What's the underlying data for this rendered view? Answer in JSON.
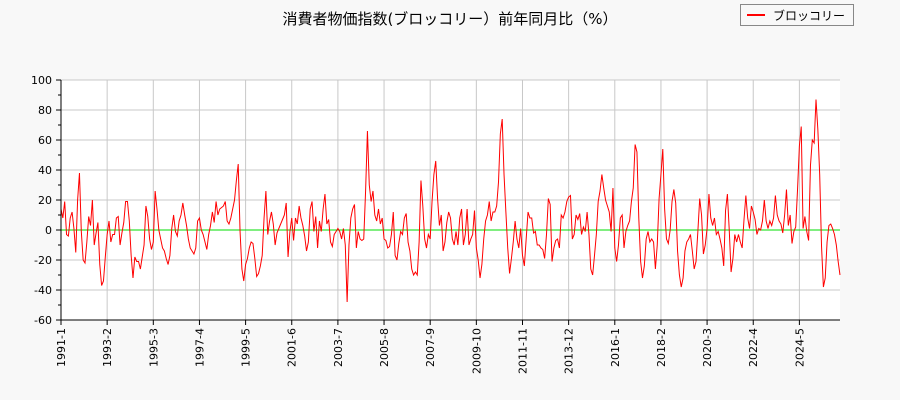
{
  "chart_data": {
    "type": "line",
    "title": "消費者物価指数(ブロッコリー）前年同月比（%）",
    "xlabel": "",
    "ylabel": "",
    "ylim": [
      -60,
      100
    ],
    "yticks": [
      "100",
      "80",
      "60",
      "40",
      "20",
      "0",
      "-20",
      "-40",
      "-60"
    ],
    "xticks": [
      "1991-1",
      "1993-2",
      "1995-3",
      "1997-4",
      "1999-5",
      "2001-6",
      "2003-7",
      "2005-8",
      "2007-9",
      "2009-10",
      "2011-11",
      "2013-12",
      "2016-1",
      "2018-2",
      "2020-3",
      "2022-4",
      "2024-5"
    ],
    "grid": true,
    "legend": "top-right",
    "reference_line": {
      "value": 0,
      "color": "#00dd00"
    },
    "series": [
      {
        "name": "ブロッコリー",
        "color": "#ff0000",
        "values": [
          14,
          8,
          19,
          -3,
          -4,
          8,
          12,
          1,
          -15,
          20,
          38,
          -1,
          -20,
          -22,
          -8,
          9,
          3,
          20,
          -10,
          -2,
          5,
          -23,
          -37,
          -34,
          -18,
          -3,
          6,
          -8,
          -3,
          -3,
          8,
          9,
          -10,
          -2,
          5,
          19,
          19,
          6,
          -17,
          -32,
          -18,
          -21,
          -21,
          -26,
          -18,
          -10,
          16,
          9,
          -6,
          -13,
          -8,
          26,
          14,
          0,
          -6,
          -12,
          -14,
          -19,
          -23,
          -17,
          1,
          10,
          -1,
          -4,
          6,
          10,
          18,
          10,
          3,
          -6,
          -12,
          -14,
          -16,
          -12,
          6,
          8,
          0,
          -3,
          -8,
          -13,
          -3,
          3,
          12,
          5,
          19,
          10,
          14,
          15,
          16,
          19,
          6,
          4,
          8,
          14,
          20,
          33,
          44,
          -1,
          -26,
          -34,
          -23,
          -19,
          -12,
          -8,
          -9,
          -19,
          -31,
          -29,
          -24,
          -17,
          8,
          26,
          -3,
          6,
          12,
          4,
          -10,
          -2,
          1,
          4,
          7,
          10,
          18,
          -18,
          -1,
          8,
          -7,
          8,
          4,
          16,
          8,
          3,
          -4,
          -14,
          -8,
          14,
          19,
          -1,
          9,
          -12,
          6,
          -1,
          14,
          24,
          4,
          7,
          -8,
          -11,
          -3,
          -1,
          1,
          -1,
          -6,
          1,
          -10,
          -48,
          -10,
          8,
          14,
          17,
          -12,
          -1,
          -6,
          -7,
          -6,
          26,
          66,
          30,
          19,
          26,
          10,
          6,
          14,
          4,
          8,
          -6,
          -7,
          -12,
          -11,
          -3,
          12,
          -17,
          -20,
          -9,
          -1,
          -3,
          8,
          11,
          -8,
          -14,
          -26,
          -30,
          -28,
          -30,
          -8,
          33,
          16,
          -6,
          -12,
          -3,
          -6,
          19,
          37,
          46,
          21,
          3,
          10,
          -14,
          -8,
          5,
          12,
          8,
          -6,
          -10,
          -1,
          -10,
          8,
          14,
          -10,
          -3,
          14,
          -10,
          -6,
          -3,
          13,
          -12,
          -20,
          -32,
          -23,
          -6,
          6,
          10,
          19,
          6,
          12,
          12,
          16,
          32,
          64,
          74,
          37,
          12,
          -12,
          -29,
          -19,
          -8,
          6,
          -6,
          -12,
          1,
          -17,
          -24,
          -6,
          12,
          8,
          8,
          -2,
          -1,
          -10,
          -10,
          -12,
          -13,
          -19,
          -3,
          21,
          17,
          -21,
          -12,
          -7,
          -6,
          -12,
          10,
          8,
          12,
          19,
          22,
          23,
          -6,
          -3,
          10,
          7,
          11,
          -3,
          2,
          -1,
          12,
          -3,
          -26,
          -30,
          -17,
          -3,
          19,
          26,
          37,
          28,
          20,
          16,
          12,
          -1,
          28,
          -12,
          -21,
          -10,
          8,
          10,
          -12,
          -1,
          3,
          6,
          19,
          28,
          57,
          52,
          8,
          -21,
          -32,
          -24,
          -6,
          -1,
          -8,
          -6,
          -8,
          -26,
          -10,
          21,
          37,
          54,
          14,
          -6,
          -9,
          0,
          19,
          27,
          18,
          -14,
          -30,
          -38,
          -32,
          -14,
          -8,
          -6,
          -3,
          -14,
          -26,
          -21,
          -1,
          21,
          10,
          -16,
          -10,
          1,
          24,
          8,
          3,
          8,
          -3,
          -1,
          -6,
          -12,
          -24,
          13,
          24,
          0,
          -28,
          -19,
          -3,
          -8,
          -3,
          -8,
          -12,
          7,
          23,
          8,
          1,
          16,
          12,
          7,
          -3,
          1,
          0,
          6,
          20,
          6,
          1,
          6,
          3,
          8,
          23,
          10,
          6,
          4,
          -2,
          10,
          27,
          3,
          10,
          -9,
          -1,
          2,
          27,
          56,
          69,
          1,
          9,
          -1,
          -7,
          43,
          60,
          58,
          87,
          67,
          37,
          -11,
          -38,
          -32,
          -8,
          3,
          4,
          1,
          -3,
          -10,
          -21,
          -30
        ]
      }
    ]
  }
}
